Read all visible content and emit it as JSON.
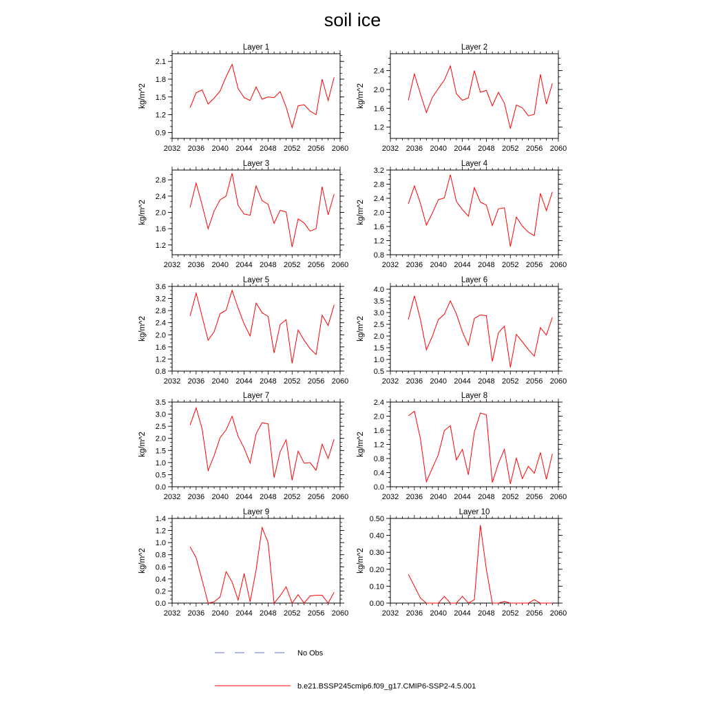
{
  "page": {
    "title": "soil ice"
  },
  "colors": {
    "model_line": "#ff0000",
    "obs_line": "#5b6fd6",
    "axis": "#000000"
  },
  "legend": [
    {
      "label": "No Obs",
      "style": "dashed",
      "color": "#5b6fd6"
    },
    {
      "label": "b.e21.BSSP245cmip6.f09_g17.CMIP6-SSP2-4.5.001",
      "style": "solid",
      "color": "#ff0000"
    }
  ],
  "chart_data": [
    {
      "type": "line",
      "title": "Layer 1",
      "xlabel": "",
      "ylabel": "kg/m^2",
      "xlim": [
        2032,
        2060
      ],
      "ylim": [
        0.8,
        2.23
      ],
      "xticks": [
        "2032",
        "2036",
        "2040",
        "2044",
        "2048",
        "2052",
        "2056",
        "2060"
      ],
      "yticks": [
        "0.9",
        "1.2",
        "1.5",
        "1.8",
        "2.1"
      ],
      "series": [
        {
          "x": [
            2035,
            2036,
            2037,
            2038,
            2039,
            2040,
            2041,
            2042,
            2043,
            2044,
            2045,
            2046,
            2047,
            2048,
            2049,
            2050,
            2051,
            2052,
            2053,
            2054,
            2055,
            2056,
            2057,
            2058,
            2059
          ],
          "y": [
            1.32,
            1.57,
            1.62,
            1.38,
            1.48,
            1.6,
            1.84,
            2.05,
            1.64,
            1.49,
            1.44,
            1.67,
            1.46,
            1.5,
            1.49,
            1.59,
            1.33,
            0.98,
            1.35,
            1.37,
            1.26,
            1.2,
            1.8,
            1.44,
            1.83
          ]
        }
      ]
    },
    {
      "type": "line",
      "title": "Layer 2",
      "xlabel": "",
      "ylabel": "kg/m^2",
      "xlim": [
        2032,
        2060
      ],
      "ylim": [
        0.96,
        2.76
      ],
      "xticks": [
        "2032",
        "2036",
        "2040",
        "2044",
        "2048",
        "2052",
        "2056",
        "2060"
      ],
      "yticks": [
        "1.2",
        "1.6",
        "2.0",
        "2.4"
      ],
      "series": [
        {
          "x": [
            2035,
            2036,
            2037,
            2038,
            2039,
            2040,
            2041,
            2042,
            2043,
            2044,
            2045,
            2046,
            2047,
            2048,
            2049,
            2050,
            2051,
            2052,
            2053,
            2054,
            2055,
            2056,
            2057,
            2058,
            2059
          ],
          "y": [
            1.77,
            2.33,
            1.91,
            1.51,
            1.83,
            2.02,
            2.2,
            2.5,
            1.91,
            1.77,
            1.82,
            2.4,
            1.94,
            1.98,
            1.65,
            1.94,
            1.71,
            1.17,
            1.67,
            1.61,
            1.44,
            1.47,
            2.32,
            1.69,
            2.13
          ]
        }
      ]
    },
    {
      "type": "line",
      "title": "Layer 3",
      "xlabel": "",
      "ylabel": "kg/m^2",
      "xlim": [
        2032,
        2060
      ],
      "ylim": [
        0.96,
        3.04
      ],
      "xticks": [
        "2032",
        "2036",
        "2040",
        "2044",
        "2048",
        "2052",
        "2056",
        "2060"
      ],
      "yticks": [
        "1.2",
        "1.6",
        "2.0",
        "2.4",
        "2.8"
      ],
      "series": [
        {
          "x": [
            2035,
            2036,
            2037,
            2038,
            2039,
            2040,
            2041,
            2042,
            2043,
            2044,
            2045,
            2046,
            2047,
            2048,
            2049,
            2050,
            2051,
            2052,
            2053,
            2054,
            2055,
            2056,
            2057,
            2058,
            2059
          ],
          "y": [
            2.12,
            2.72,
            2.18,
            1.6,
            2.03,
            2.31,
            2.4,
            2.96,
            2.17,
            1.96,
            1.93,
            2.65,
            2.29,
            2.2,
            1.73,
            2.05,
            2.01,
            1.15,
            1.84,
            1.74,
            1.54,
            1.6,
            2.63,
            1.94,
            2.45
          ]
        }
      ]
    },
    {
      "type": "line",
      "title": "Layer 4",
      "xlabel": "",
      "ylabel": "kg/m^2",
      "xlim": [
        2032,
        2060
      ],
      "ylim": [
        0.8,
        3.2
      ],
      "xticks": [
        "2032",
        "2036",
        "2040",
        "2044",
        "2048",
        "2052",
        "2056",
        "2060"
      ],
      "yticks": [
        "0.8",
        "1.2",
        "1.6",
        "2.0",
        "2.4",
        "2.8",
        "3.2"
      ],
      "series": [
        {
          "x": [
            2035,
            2036,
            2037,
            2038,
            2039,
            2040,
            2041,
            2042,
            2043,
            2044,
            2045,
            2046,
            2047,
            2048,
            2049,
            2050,
            2051,
            2052,
            2053,
            2054,
            2055,
            2056,
            2057,
            2058,
            2059
          ],
          "y": [
            2.24,
            2.75,
            2.26,
            1.64,
            1.98,
            2.36,
            2.41,
            3.07,
            2.31,
            2.08,
            1.89,
            2.7,
            2.29,
            2.21,
            1.63,
            2.1,
            2.13,
            1.03,
            1.87,
            1.61,
            1.44,
            1.34,
            2.54,
            2.05,
            2.58
          ]
        }
      ]
    },
    {
      "type": "line",
      "title": "Layer 5",
      "xlabel": "",
      "ylabel": "kg/m^2",
      "xlim": [
        2032,
        2060
      ],
      "ylim": [
        0.8,
        3.6
      ],
      "xticks": [
        "2032",
        "2036",
        "2040",
        "2044",
        "2048",
        "2052",
        "2056",
        "2060"
      ],
      "yticks": [
        "0.8",
        "1.2",
        "1.6",
        "2.0",
        "2.4",
        "2.8",
        "3.2",
        "3.6"
      ],
      "series": [
        {
          "x": [
            2035,
            2036,
            2037,
            2038,
            2039,
            2040,
            2041,
            2042,
            2043,
            2044,
            2045,
            2046,
            2047,
            2048,
            2049,
            2050,
            2051,
            2052,
            2053,
            2054,
            2055,
            2056,
            2057,
            2058,
            2059
          ],
          "y": [
            2.62,
            3.38,
            2.6,
            1.82,
            2.1,
            2.7,
            2.81,
            3.47,
            2.88,
            2.36,
            1.96,
            3.05,
            2.73,
            2.61,
            1.4,
            2.34,
            2.5,
            1.06,
            2.16,
            1.82,
            1.54,
            1.35,
            2.65,
            2.31,
            2.99
          ]
        }
      ]
    },
    {
      "type": "line",
      "title": "Layer 6",
      "xlabel": "",
      "ylabel": "kg/m^2",
      "xlim": [
        2032,
        2060
      ],
      "ylim": [
        0.5,
        4.12
      ],
      "xticks": [
        "2032",
        "2036",
        "2040",
        "2044",
        "2048",
        "2052",
        "2056",
        "2060"
      ],
      "yticks": [
        "0.5",
        "1.0",
        "1.5",
        "2.0",
        "2.5",
        "3.0",
        "3.5",
        "4.0"
      ],
      "series": [
        {
          "x": [
            2035,
            2036,
            2037,
            2038,
            2039,
            2040,
            2041,
            2042,
            2043,
            2044,
            2045,
            2046,
            2047,
            2048,
            2049,
            2050,
            2051,
            2052,
            2053,
            2054,
            2055,
            2056,
            2057,
            2058,
            2059
          ],
          "y": [
            2.7,
            3.72,
            2.72,
            1.41,
            1.99,
            2.7,
            2.93,
            3.5,
            2.95,
            2.18,
            1.61,
            2.75,
            2.9,
            2.87,
            0.91,
            2.14,
            2.42,
            0.66,
            2.07,
            1.75,
            1.42,
            1.14,
            2.36,
            2.04,
            2.8
          ]
        }
      ]
    },
    {
      "type": "line",
      "title": "Layer 7",
      "xlabel": "",
      "ylabel": "kg/m^2",
      "xlim": [
        2032,
        2060
      ],
      "ylim": [
        0.0,
        3.5
      ],
      "xticks": [
        "2032",
        "2036",
        "2040",
        "2044",
        "2048",
        "2052",
        "2056",
        "2060"
      ],
      "yticks": [
        "0.0",
        "0.5",
        "1.0",
        "1.5",
        "2.0",
        "2.5",
        "3.0",
        "3.5"
      ],
      "series": [
        {
          "x": [
            2035,
            2036,
            2037,
            2038,
            2039,
            2040,
            2041,
            2042,
            2043,
            2044,
            2045,
            2046,
            2047,
            2048,
            2049,
            2050,
            2051,
            2052,
            2053,
            2054,
            2055,
            2056,
            2057,
            2058,
            2059
          ],
          "y": [
            2.55,
            3.26,
            2.39,
            0.67,
            1.29,
            2.03,
            2.35,
            2.91,
            2.08,
            1.6,
            0.98,
            2.19,
            2.65,
            2.6,
            0.38,
            1.44,
            1.94,
            0.27,
            1.47,
            0.98,
            1.0,
            0.68,
            1.76,
            1.17,
            1.97
          ]
        }
      ]
    },
    {
      "type": "line",
      "title": "Layer 8",
      "xlabel": "",
      "ylabel": "kg/m^2",
      "xlim": [
        2032,
        2060
      ],
      "ylim": [
        0.0,
        2.4
      ],
      "xticks": [
        "2032",
        "2036",
        "2040",
        "2044",
        "2048",
        "2052",
        "2056",
        "2060"
      ],
      "yticks": [
        "0.0",
        "0.4",
        "0.8",
        "1.2",
        "1.6",
        "2.0",
        "2.4"
      ],
      "series": [
        {
          "x": [
            2035,
            2036,
            2037,
            2038,
            2039,
            2040,
            2041,
            2042,
            2043,
            2044,
            2045,
            2046,
            2047,
            2048,
            2049,
            2050,
            2051,
            2052,
            2053,
            2054,
            2055,
            2056,
            2057,
            2058,
            2059
          ],
          "y": [
            2.01,
            2.14,
            1.37,
            0.14,
            0.53,
            0.91,
            1.59,
            1.73,
            0.76,
            1.06,
            0.34,
            1.55,
            2.09,
            2.04,
            0.12,
            0.66,
            1.06,
            0.08,
            0.81,
            0.23,
            0.58,
            0.38,
            0.97,
            0.21,
            0.93
          ]
        }
      ]
    },
    {
      "type": "line",
      "title": "Layer 9",
      "xlabel": "",
      "ylabel": "kg/m^2",
      "xlim": [
        2032,
        2060
      ],
      "ylim": [
        0.0,
        1.4
      ],
      "xticks": [
        "2032",
        "2036",
        "2040",
        "2044",
        "2048",
        "2052",
        "2056",
        "2060"
      ],
      "yticks": [
        "0.0",
        "0.2",
        "0.4",
        "0.6",
        "0.8",
        "1.0",
        "1.2",
        "1.4"
      ],
      "series": [
        {
          "x": [
            2035,
            2036,
            2037,
            2038,
            2039,
            2040,
            2041,
            2042,
            2043,
            2044,
            2045,
            2046,
            2047,
            2048,
            2049,
            2050,
            2051,
            2052,
            2053,
            2054,
            2055,
            2056,
            2057,
            2058,
            2059
          ],
          "y": [
            0.93,
            0.75,
            0.38,
            0.0,
            0.02,
            0.1,
            0.52,
            0.35,
            0.05,
            0.49,
            0.02,
            0.55,
            1.25,
            1.0,
            0.0,
            0.12,
            0.27,
            0.0,
            0.14,
            0.0,
            0.12,
            0.13,
            0.13,
            0.0,
            0.18
          ]
        }
      ]
    },
    {
      "type": "line",
      "title": "Layer 10",
      "xlabel": "",
      "ylabel": "kg/m^2",
      "xlim": [
        2032,
        2060
      ],
      "ylim": [
        0.0,
        0.5
      ],
      "xticks": [
        "2032",
        "2036",
        "2040",
        "2044",
        "2048",
        "2052",
        "2056",
        "2060"
      ],
      "yticks": [
        "0.00",
        "0.10",
        "0.20",
        "0.30",
        "0.40",
        "0.50"
      ],
      "series": [
        {
          "x": [
            2035,
            2036,
            2037,
            2038,
            2039,
            2040,
            2041,
            2042,
            2043,
            2044,
            2045,
            2046,
            2047,
            2048,
            2049,
            2050,
            2051,
            2052,
            2053,
            2054,
            2055,
            2056,
            2057,
            2058,
            2059
          ],
          "y": [
            0.17,
            0.1,
            0.03,
            0.0,
            0.0,
            0.0,
            0.04,
            0.0,
            0.0,
            0.04,
            0.0,
            0.02,
            0.46,
            0.2,
            0.0,
            0.0,
            0.01,
            0.0,
            0.0,
            0.0,
            0.0,
            0.02,
            0.0,
            0.0,
            0.0
          ]
        }
      ]
    }
  ]
}
